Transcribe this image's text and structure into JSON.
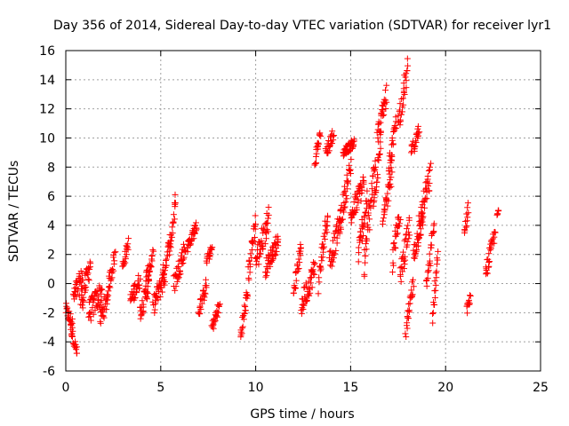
{
  "chart_data": {
    "type": "scatter",
    "title": "Day 356 of 2014, Sidereal Day-to-day VTEC variation (SDTVAR) for receiver lyr1",
    "xlabel": "GPS time / hours",
    "ylabel": "SDTVAR / TECUs",
    "xlim": [
      0,
      25
    ],
    "ylim": [
      -6,
      16
    ],
    "xticks": [
      0,
      5,
      10,
      15,
      20,
      25
    ],
    "yticks": [
      -6,
      -4,
      -2,
      0,
      2,
      4,
      6,
      8,
      10,
      12,
      14,
      16
    ],
    "xtick_labels": [
      "0",
      "5",
      "10",
      "15",
      "20",
      "25"
    ],
    "ytick_labels": [
      "-6",
      "-4",
      "-2",
      "0",
      "2",
      "4",
      "6",
      "8",
      "10",
      "12",
      "14",
      "16"
    ],
    "grid": true,
    "marker": "plus",
    "color": "#ff0000",
    "series": [
      {
        "name": "SDTVAR",
        "segments": [
          {
            "x0": 0.0,
            "x1": 0.35,
            "y0": -1.8,
            "y1": -2.8,
            "spread": 0.5
          },
          {
            "x0": 0.25,
            "x1": 0.6,
            "y0": -3.0,
            "y1": -4.8,
            "spread": 0.4
          },
          {
            "x0": 0.4,
            "x1": 0.9,
            "y0": -1.0,
            "y1": 0.5,
            "spread": 0.8
          },
          {
            "x0": 0.8,
            "x1": 1.3,
            "y0": -1.5,
            "y1": 1.5,
            "spread": 0.8
          },
          {
            "x0": 1.2,
            "x1": 1.9,
            "y0": -2.0,
            "y1": -0.5,
            "spread": 0.8
          },
          {
            "x0": 1.8,
            "x1": 2.2,
            "y0": -2.5,
            "y1": -1.0,
            "spread": 0.7
          },
          {
            "x0": 2.2,
            "x1": 2.6,
            "y0": -0.5,
            "y1": 2.0,
            "spread": 0.6
          },
          {
            "x0": 3.0,
            "x1": 3.3,
            "y0": 1.2,
            "y1": 2.8,
            "spread": 0.4
          },
          {
            "x0": 3.4,
            "x1": 3.9,
            "y0": -1.2,
            "y1": 0.3,
            "spread": 0.6
          },
          {
            "x0": 3.9,
            "x1": 4.4,
            "y0": -2.0,
            "y1": 0.0,
            "spread": 0.6
          },
          {
            "x0": 4.2,
            "x1": 4.6,
            "y0": 0.2,
            "y1": 1.9,
            "spread": 0.5
          },
          {
            "x0": 4.6,
            "x1": 5.2,
            "y0": -1.5,
            "y1": 0.5,
            "spread": 0.7
          },
          {
            "x0": 5.1,
            "x1": 5.5,
            "y0": 0.5,
            "y1": 3.0,
            "spread": 0.6
          },
          {
            "x0": 5.5,
            "x1": 5.8,
            "y0": 2.5,
            "y1": 5.8,
            "spread": 0.6
          },
          {
            "x0": 5.7,
            "x1": 6.3,
            "y0": 0.0,
            "y1": 2.5,
            "spread": 0.7
          },
          {
            "x0": 6.4,
            "x1": 6.9,
            "y0": 2.5,
            "y1": 4.0,
            "spread": 0.4
          },
          {
            "x0": 7.0,
            "x1": 7.4,
            "y0": -2.0,
            "y1": 0.0,
            "spread": 0.5
          },
          {
            "x0": 7.4,
            "x1": 7.7,
            "y0": 1.5,
            "y1": 2.4,
            "spread": 0.3
          },
          {
            "x0": 7.7,
            "x1": 8.1,
            "y0": -3.0,
            "y1": -1.5,
            "spread": 0.4
          },
          {
            "x0": 9.2,
            "x1": 9.6,
            "y0": -3.6,
            "y1": -0.5,
            "spread": 0.5
          },
          {
            "x0": 9.6,
            "x1": 10.0,
            "y0": 0.5,
            "y1": 4.5,
            "spread": 0.7
          },
          {
            "x0": 10.0,
            "x1": 10.7,
            "y0": 1.5,
            "y1": 4.5,
            "spread": 0.9
          },
          {
            "x0": 10.5,
            "x1": 11.2,
            "y0": 1.0,
            "y1": 3.0,
            "spread": 0.6
          },
          {
            "x0": 12.0,
            "x1": 12.4,
            "y0": -0.5,
            "y1": 2.5,
            "spread": 0.5
          },
          {
            "x0": 12.4,
            "x1": 13.1,
            "y0": -1.5,
            "y1": 1.0,
            "spread": 0.8
          },
          {
            "x0": 13.1,
            "x1": 13.4,
            "y0": 8.3,
            "y1": 10.3,
            "spread": 0.5
          },
          {
            "x0": 13.3,
            "x1": 13.8,
            "y0": 0.0,
            "y1": 5.0,
            "spread": 0.8
          },
          {
            "x0": 13.7,
            "x1": 14.1,
            "y0": 9.0,
            "y1": 10.3,
            "spread": 0.5
          },
          {
            "x0": 13.9,
            "x1": 14.5,
            "y0": 1.5,
            "y1": 4.5,
            "spread": 0.8
          },
          {
            "x0": 14.4,
            "x1": 15.0,
            "y0": 4.0,
            "y1": 8.0,
            "spread": 0.8
          },
          {
            "x0": 14.6,
            "x1": 15.2,
            "y0": 9.0,
            "y1": 9.7,
            "spread": 0.3
          },
          {
            "x0": 15.0,
            "x1": 15.7,
            "y0": 4.5,
            "y1": 7.0,
            "spread": 0.8
          },
          {
            "x0": 15.4,
            "x1": 15.9,
            "y0": 2.0,
            "y1": 6.0,
            "spread": 0.8
          },
          {
            "x0": 15.7,
            "x1": 16.3,
            "y0": 1.0,
            "y1": 8.5,
            "spread": 0.9
          },
          {
            "x0": 16.2,
            "x1": 16.6,
            "y0": 5.0,
            "y1": 10.5,
            "spread": 0.8
          },
          {
            "x0": 16.4,
            "x1": 16.9,
            "y0": 10.0,
            "y1": 13.0,
            "spread": 0.7
          },
          {
            "x0": 16.7,
            "x1": 17.2,
            "y0": 4.0,
            "y1": 8.0,
            "spread": 0.8
          },
          {
            "x0": 17.0,
            "x1": 17.4,
            "y0": 8.0,
            "y1": 11.0,
            "spread": 0.6
          },
          {
            "x0": 17.2,
            "x1": 17.6,
            "y0": 1.5,
            "y1": 5.0,
            "spread": 0.8
          },
          {
            "x0": 17.5,
            "x1": 18.0,
            "y0": 11.0,
            "y1": 14.7,
            "spread": 0.8
          },
          {
            "x0": 17.6,
            "x1": 18.1,
            "y0": 0.5,
            "y1": 4.0,
            "spread": 0.8
          },
          {
            "x0": 17.9,
            "x1": 18.3,
            "y0": -3.5,
            "y1": 0.0,
            "spread": 0.6
          },
          {
            "x0": 18.2,
            "x1": 18.6,
            "y0": 9.0,
            "y1": 10.5,
            "spread": 0.5
          },
          {
            "x0": 18.3,
            "x1": 18.8,
            "y0": 2.0,
            "y1": 4.5,
            "spread": 0.7
          },
          {
            "x0": 18.6,
            "x1": 19.2,
            "y0": 4.0,
            "y1": 7.5,
            "spread": 0.9
          },
          {
            "x0": 19.0,
            "x1": 19.4,
            "y0": 0.0,
            "y1": 4.0,
            "spread": 0.7
          },
          {
            "x0": 19.3,
            "x1": 19.6,
            "y0": -2.3,
            "y1": 2.0,
            "spread": 0.5
          },
          {
            "x0": 21.0,
            "x1": 21.2,
            "y0": 3.5,
            "y1": 5.2,
            "spread": 0.4
          },
          {
            "x0": 21.1,
            "x1": 21.3,
            "y0": -1.8,
            "y1": -1.0,
            "spread": 0.3
          },
          {
            "x0": 22.1,
            "x1": 22.6,
            "y0": 0.7,
            "y1": 3.5,
            "spread": 0.5
          },
          {
            "x0": 22.7,
            "x1": 22.8,
            "y0": 4.8,
            "y1": 5.0,
            "spread": 0.1
          }
        ]
      }
    ]
  }
}
